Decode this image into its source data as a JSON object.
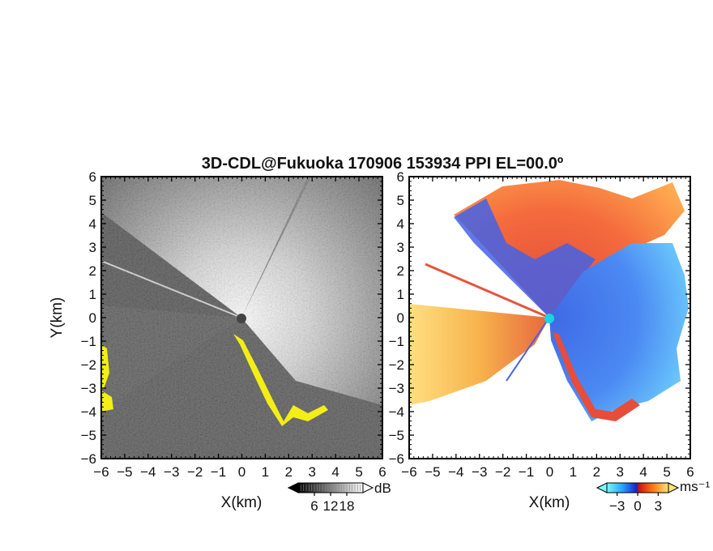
{
  "title": "3D-CDL@Fukuoka 170906 153934 PPI EL=00.0º",
  "colors": {
    "missing_mask": "#f3ee16",
    "velocity_negative": "#1a55e8",
    "velocity_negative_light": "#3fc8ff",
    "velocity_positive": "#e8380f",
    "velocity_positive_light": "#ffd66a",
    "radar_center": "#19d5e3"
  },
  "chart_data": [
    {
      "type": "heatmap",
      "panel": "left",
      "quantity": "SNR",
      "xlabel": "X(km)",
      "ylabel": "Y(km)",
      "xlim": [
        -6,
        6
      ],
      "ylim": [
        -6,
        6
      ],
      "xticks": [
        "-6",
        "-5",
        "-4",
        "-3",
        "-2",
        "-1",
        "0",
        "1",
        "2",
        "3",
        "4",
        "5",
        "6"
      ],
      "yticks": [
        "-6",
        "-5",
        "-4",
        "-3",
        "-2",
        "-1",
        "0",
        "1",
        "2",
        "3",
        "4",
        "5",
        "6"
      ],
      "colorbar": {
        "unit": "dB",
        "ticks": [
          "6",
          "12",
          "18"
        ],
        "range": [
          0,
          24
        ],
        "colormap": "grayscale"
      }
    },
    {
      "type": "heatmap",
      "panel": "right",
      "quantity": "Doppler velocity",
      "xlabel": "X(km)",
      "xlim": [
        -6,
        6
      ],
      "ylim": [
        -6,
        6
      ],
      "xticks": [
        "-6",
        "-5",
        "-4",
        "-3",
        "-2",
        "-1",
        "0",
        "1",
        "2",
        "3",
        "4",
        "5",
        "6"
      ],
      "yticks": [
        "-6",
        "-5",
        "-4",
        "-3",
        "-2",
        "-1",
        "0",
        "1",
        "2",
        "3",
        "4",
        "5",
        "6"
      ],
      "colorbar": {
        "unit": "ms⁻¹",
        "ticks": [
          "−3",
          "0",
          "3"
        ],
        "range": [
          -4.5,
          4.5
        ],
        "colormap": "cyan-blue-red-yellow"
      }
    }
  ]
}
